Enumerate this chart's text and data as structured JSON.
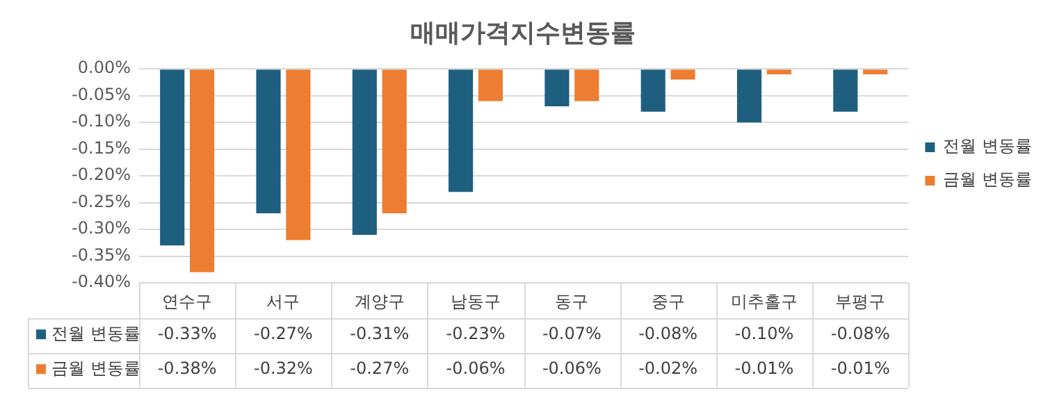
{
  "chart_data": {
    "type": "bar",
    "title": "매매가격지수변동률",
    "categories": [
      "연수구",
      "서구",
      "계양구",
      "남동구",
      "동구",
      "중구",
      "미추홀구",
      "부평구"
    ],
    "series": [
      {
        "name": "전월 변동률",
        "color": "#1e5f80",
        "values": [
          -0.33,
          -0.27,
          -0.31,
          -0.23,
          -0.07,
          -0.08,
          -0.1,
          -0.08
        ],
        "value_labels": [
          "-0.33%",
          "-0.27%",
          "-0.31%",
          "-0.23%",
          "-0.07%",
          "-0.08%",
          "-0.10%",
          "-0.08%"
        ]
      },
      {
        "name": "금월 변동률",
        "color": "#ed7d31",
        "values": [
          -0.38,
          -0.32,
          -0.27,
          -0.06,
          -0.06,
          -0.02,
          -0.01,
          -0.01
        ],
        "value_labels": [
          "-0.38%",
          "-0.32%",
          "-0.27%",
          "-0.06%",
          "-0.06%",
          "-0.02%",
          "-0.01%",
          "-0.01%"
        ]
      }
    ],
    "ylim": [
      -0.4,
      0
    ],
    "yticks": [
      {
        "value": 0,
        "label": "0.00%"
      },
      {
        "value": -0.05,
        "label": "-0.05%"
      },
      {
        "value": -0.1,
        "label": "-0.10%"
      },
      {
        "value": -0.15,
        "label": "-0.15%"
      },
      {
        "value": -0.2,
        "label": "-0.20%"
      },
      {
        "value": -0.25,
        "label": "-0.25%"
      },
      {
        "value": -0.3,
        "label": "-0.30%"
      },
      {
        "value": -0.35,
        "label": "-0.35%"
      },
      {
        "value": -0.4,
        "label": "-0.40%"
      }
    ],
    "grid": "y",
    "legend": "right"
  }
}
